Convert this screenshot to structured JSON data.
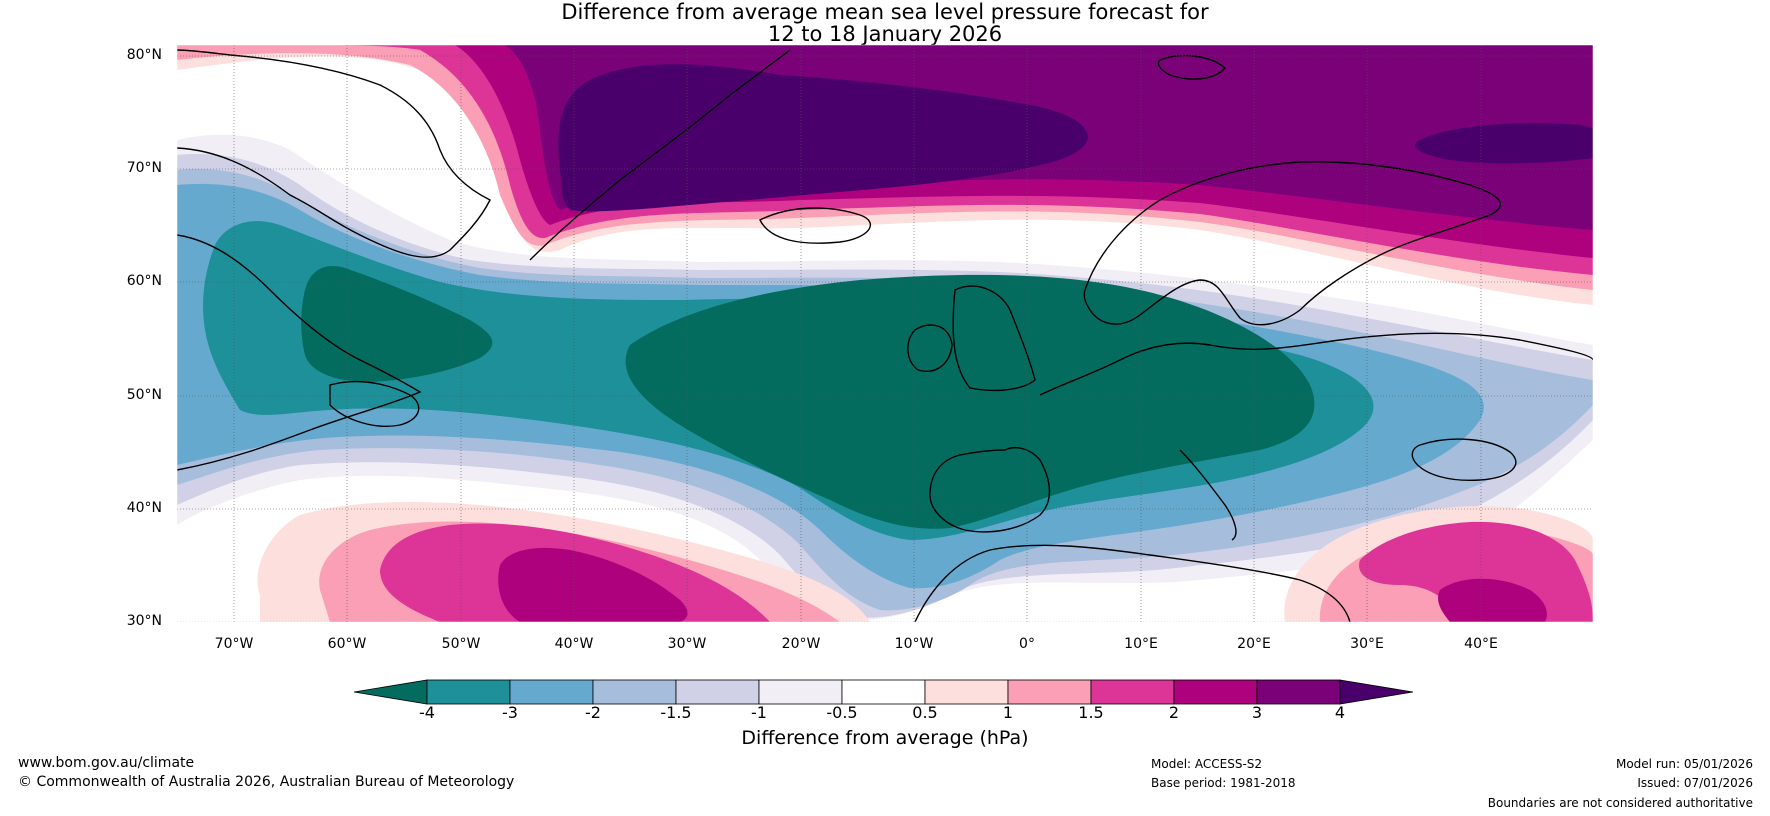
{
  "title": {
    "line1": "Difference from average mean sea level pressure forecast for",
    "line2": "12 to 18 January 2026"
  },
  "map": {
    "lat_labels": [
      "80°N",
      "70°N",
      "60°N",
      "50°N",
      "40°N",
      "30°N"
    ],
    "lon_labels": [
      "70°W",
      "60°W",
      "50°W",
      "40°W",
      "30°W",
      "20°W",
      "10°W",
      "0°",
      "10°E",
      "20°E",
      "30°E",
      "40°E"
    ],
    "extent": {
      "lon_min": -75,
      "lon_max": 50,
      "lat_min": 30,
      "lat_max": 81
    }
  },
  "colorbar": {
    "label": "Difference from average (hPa)",
    "ticks": [
      "-4",
      "-3",
      "-2",
      "-1.5",
      "-1",
      "-0.5",
      "0.5",
      "1",
      "1.5",
      "2",
      "3",
      "4"
    ],
    "colors": [
      "#036c5f",
      "#1e9099",
      "#66a9cf",
      "#a6bddb",
      "#d0d1e6",
      "#f1eef6",
      "#ffffff",
      "#fde0dd",
      "#fa9fb5",
      "#dd3497",
      "#ae017e",
      "#7a0177",
      "#49006a"
    ]
  },
  "footer": {
    "website": "www.bom.gov.au/climate",
    "copyright": "© Commonwealth of Australia 2026, Australian Bureau of Meteorology",
    "model": "Model: ACCESS-S2",
    "base_period": "Base period: 1981-2018",
    "model_run": "Model run: 05/01/2026",
    "issued": "Issued: 07/01/2026",
    "disclaimer": "Boundaries are not considered authoritative"
  }
}
